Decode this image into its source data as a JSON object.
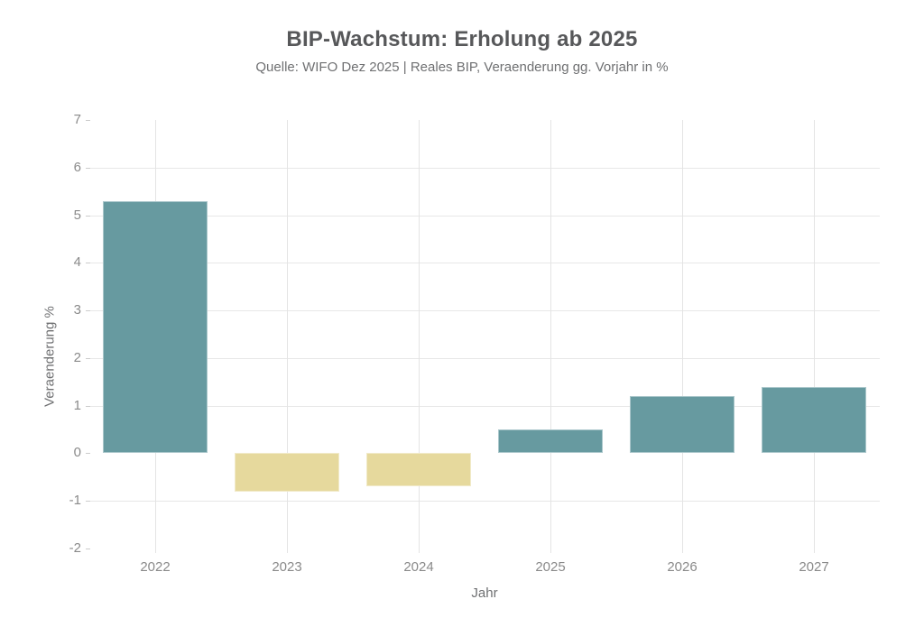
{
  "chart_data": {
    "type": "bar",
    "title": "BIP-Wachstum: Erholung ab 2025",
    "subtitle": "Quelle: WIFO Dez 2025 | Reales BIP, Veraenderung gg. Vorjahr in %",
    "xlabel": "Jahr",
    "ylabel": "Veraenderung %",
    "categories": [
      "2022",
      "2023",
      "2024",
      "2025",
      "2026",
      "2027"
    ],
    "values": [
      5.3,
      -0.8,
      -0.7,
      0.5,
      1.2,
      1.4
    ],
    "ylim": [
      -2,
      7
    ],
    "ytick_labels": [
      "7",
      "6",
      "5",
      "4",
      "3",
      "2",
      "1",
      "0",
      "-1",
      "-2"
    ],
    "grid_lines_horizontal": [
      6,
      5,
      4,
      3,
      2,
      1,
      -1
    ],
    "grid": "on",
    "legend_position": "none",
    "colors": {
      "positive_bar": "#679aa0",
      "negative_bar": "#e6d99d",
      "gridline": "#e7e7e7",
      "tick_label": "#8a8a8a",
      "title_text": "#57585a",
      "subtitle_text": "#6f7072",
      "background": "#ffffff"
    }
  }
}
